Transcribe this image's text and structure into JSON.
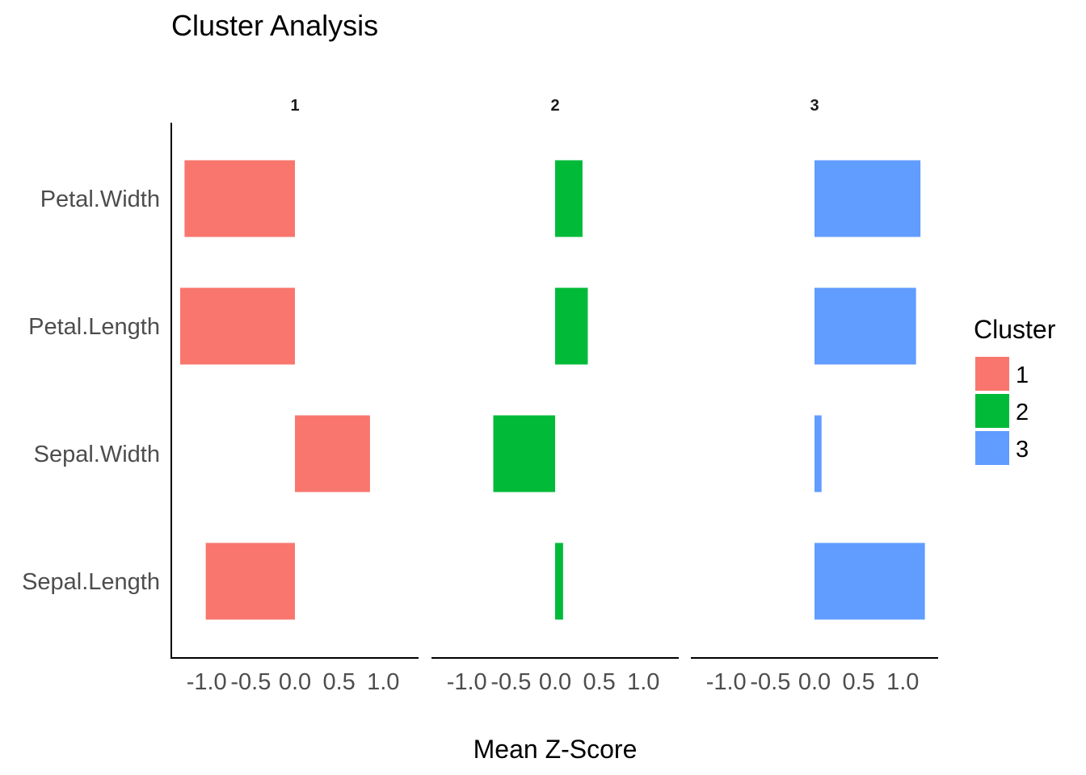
{
  "chart_data": {
    "type": "bar",
    "orientation": "horizontal",
    "title": "Cluster Analysis",
    "xlabel": "Mean Z-Score",
    "ylabel": "",
    "categories": [
      "Sepal.Length",
      "Sepal.Width",
      "Petal.Length",
      "Petal.Width"
    ],
    "facets": [
      "1",
      "2",
      "3"
    ],
    "xticks": [
      "-1.0",
      "-0.5",
      "0.0",
      "0.5",
      "1.0"
    ],
    "xtick_values": [
      -1.0,
      -0.5,
      0.0,
      0.5,
      1.0
    ],
    "xlim": [
      -1.4,
      1.4
    ],
    "grid": false,
    "legend": {
      "title": "Cluster",
      "position": "right",
      "entries": [
        "1",
        "2",
        "3"
      ]
    },
    "colors": {
      "1": "#F8766D",
      "2": "#00BA38",
      "3": "#619CFF"
    },
    "series": [
      {
        "name": "1",
        "values": [
          -1.01,
          0.85,
          -1.3,
          -1.25
        ]
      },
      {
        "name": "2",
        "values": [
          0.09,
          -0.7,
          0.37,
          0.31
        ]
      },
      {
        "name": "3",
        "values": [
          1.25,
          0.08,
          1.15,
          1.2
        ]
      }
    ]
  }
}
